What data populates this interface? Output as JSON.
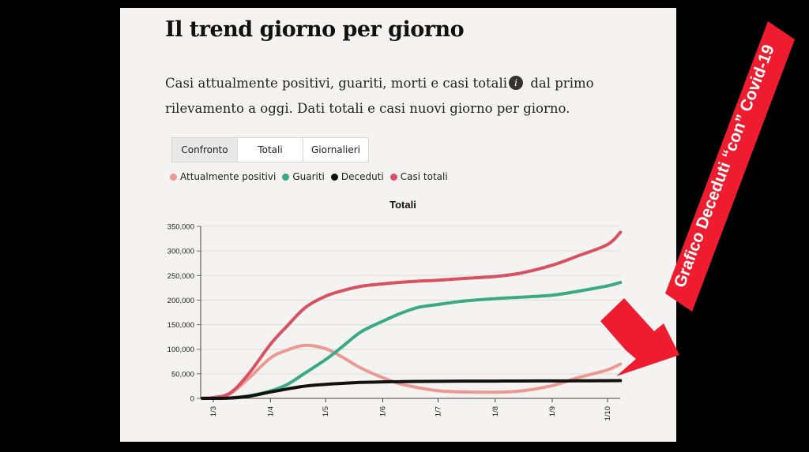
{
  "header": {
    "title": "Il trend giorno per giorno",
    "desc_line1_a": "Casi attualmente positivi, guariti, morti e casi totali",
    "desc_line1_b": " dal primo",
    "desc_line2": "rilevamento a oggi. Dati totali e casi nuovi giorno per giorno.",
    "info_icon": "i"
  },
  "tabs": [
    {
      "label": "Confronto",
      "active": true
    },
    {
      "label": "Totali",
      "active": false
    },
    {
      "label": "Giornalieri",
      "active": false
    }
  ],
  "legend": [
    {
      "label": "Attualmente positivi",
      "color": "#ec9a91"
    },
    {
      "label": "Guariti",
      "color": "#3aaa84"
    },
    {
      "label": "Deceduti",
      "color": "#111111"
    },
    {
      "label": "Casi totali",
      "color": "#d9505f"
    }
  ],
  "annotation": {
    "text": "Grafico Deceduti “con” Covid-19",
    "color": "#ee1c2e"
  },
  "chart_data": {
    "type": "line",
    "title": "Totali",
    "xlabel": "",
    "ylabel": "",
    "ylim": [
      0,
      350000
    ],
    "yticks": [
      0,
      50000,
      100000,
      150000,
      200000,
      250000,
      300000,
      350000
    ],
    "ytick_labels": [
      "0",
      "50,000",
      "100,000",
      "150,000",
      "200,000",
      "250,000",
      "300,000",
      "350,000"
    ],
    "xticks": [
      "1/3",
      "1/4",
      "1/5",
      "1/6",
      "1/7",
      "1/8",
      "1/9",
      "1/10"
    ],
    "x": [
      "24/2",
      "1/3",
      "10/3",
      "20/3",
      "1/4",
      "10/4",
      "20/4",
      "1/5",
      "10/5",
      "20/5",
      "1/6",
      "10/6",
      "20/6",
      "1/7",
      "15/7",
      "1/8",
      "15/8",
      "1/9",
      "15/9",
      "1/10",
      "8/10"
    ],
    "series": [
      {
        "name": "Attualmente positivi",
        "color": "#ec9a91",
        "values": [
          200,
          1500,
          9000,
          40000,
          82000,
          98000,
          108000,
          101000,
          84000,
          62000,
          42000,
          30000,
          22000,
          15500,
          13000,
          12500,
          15000,
          26000,
          42000,
          58000,
          70000
        ]
      },
      {
        "name": "Guariti",
        "color": "#3aaa84",
        "values": [
          0,
          100,
          900,
          5000,
          15000,
          28000,
          52000,
          79000,
          105000,
          135000,
          157000,
          172000,
          185000,
          191000,
          198000,
          203000,
          206000,
          210000,
          218000,
          229000,
          236000
        ]
      },
      {
        "name": "Deceduti",
        "color": "#111111",
        "values": [
          0,
          30,
          600,
          4000,
          13000,
          19000,
          25000,
          28500,
          30500,
          32500,
          33500,
          34000,
          34500,
          34800,
          35100,
          35200,
          35400,
          35500,
          35700,
          36000,
          36200
        ]
      },
      {
        "name": "Casi totali",
        "color": "#d9505f",
        "values": [
          200,
          1700,
          10500,
          49000,
          110000,
          147000,
          185000,
          208000,
          219000,
          228000,
          233000,
          236000,
          238500,
          240500,
          244000,
          248000,
          255000,
          271000,
          290000,
          313000,
          338000
        ]
      }
    ]
  }
}
